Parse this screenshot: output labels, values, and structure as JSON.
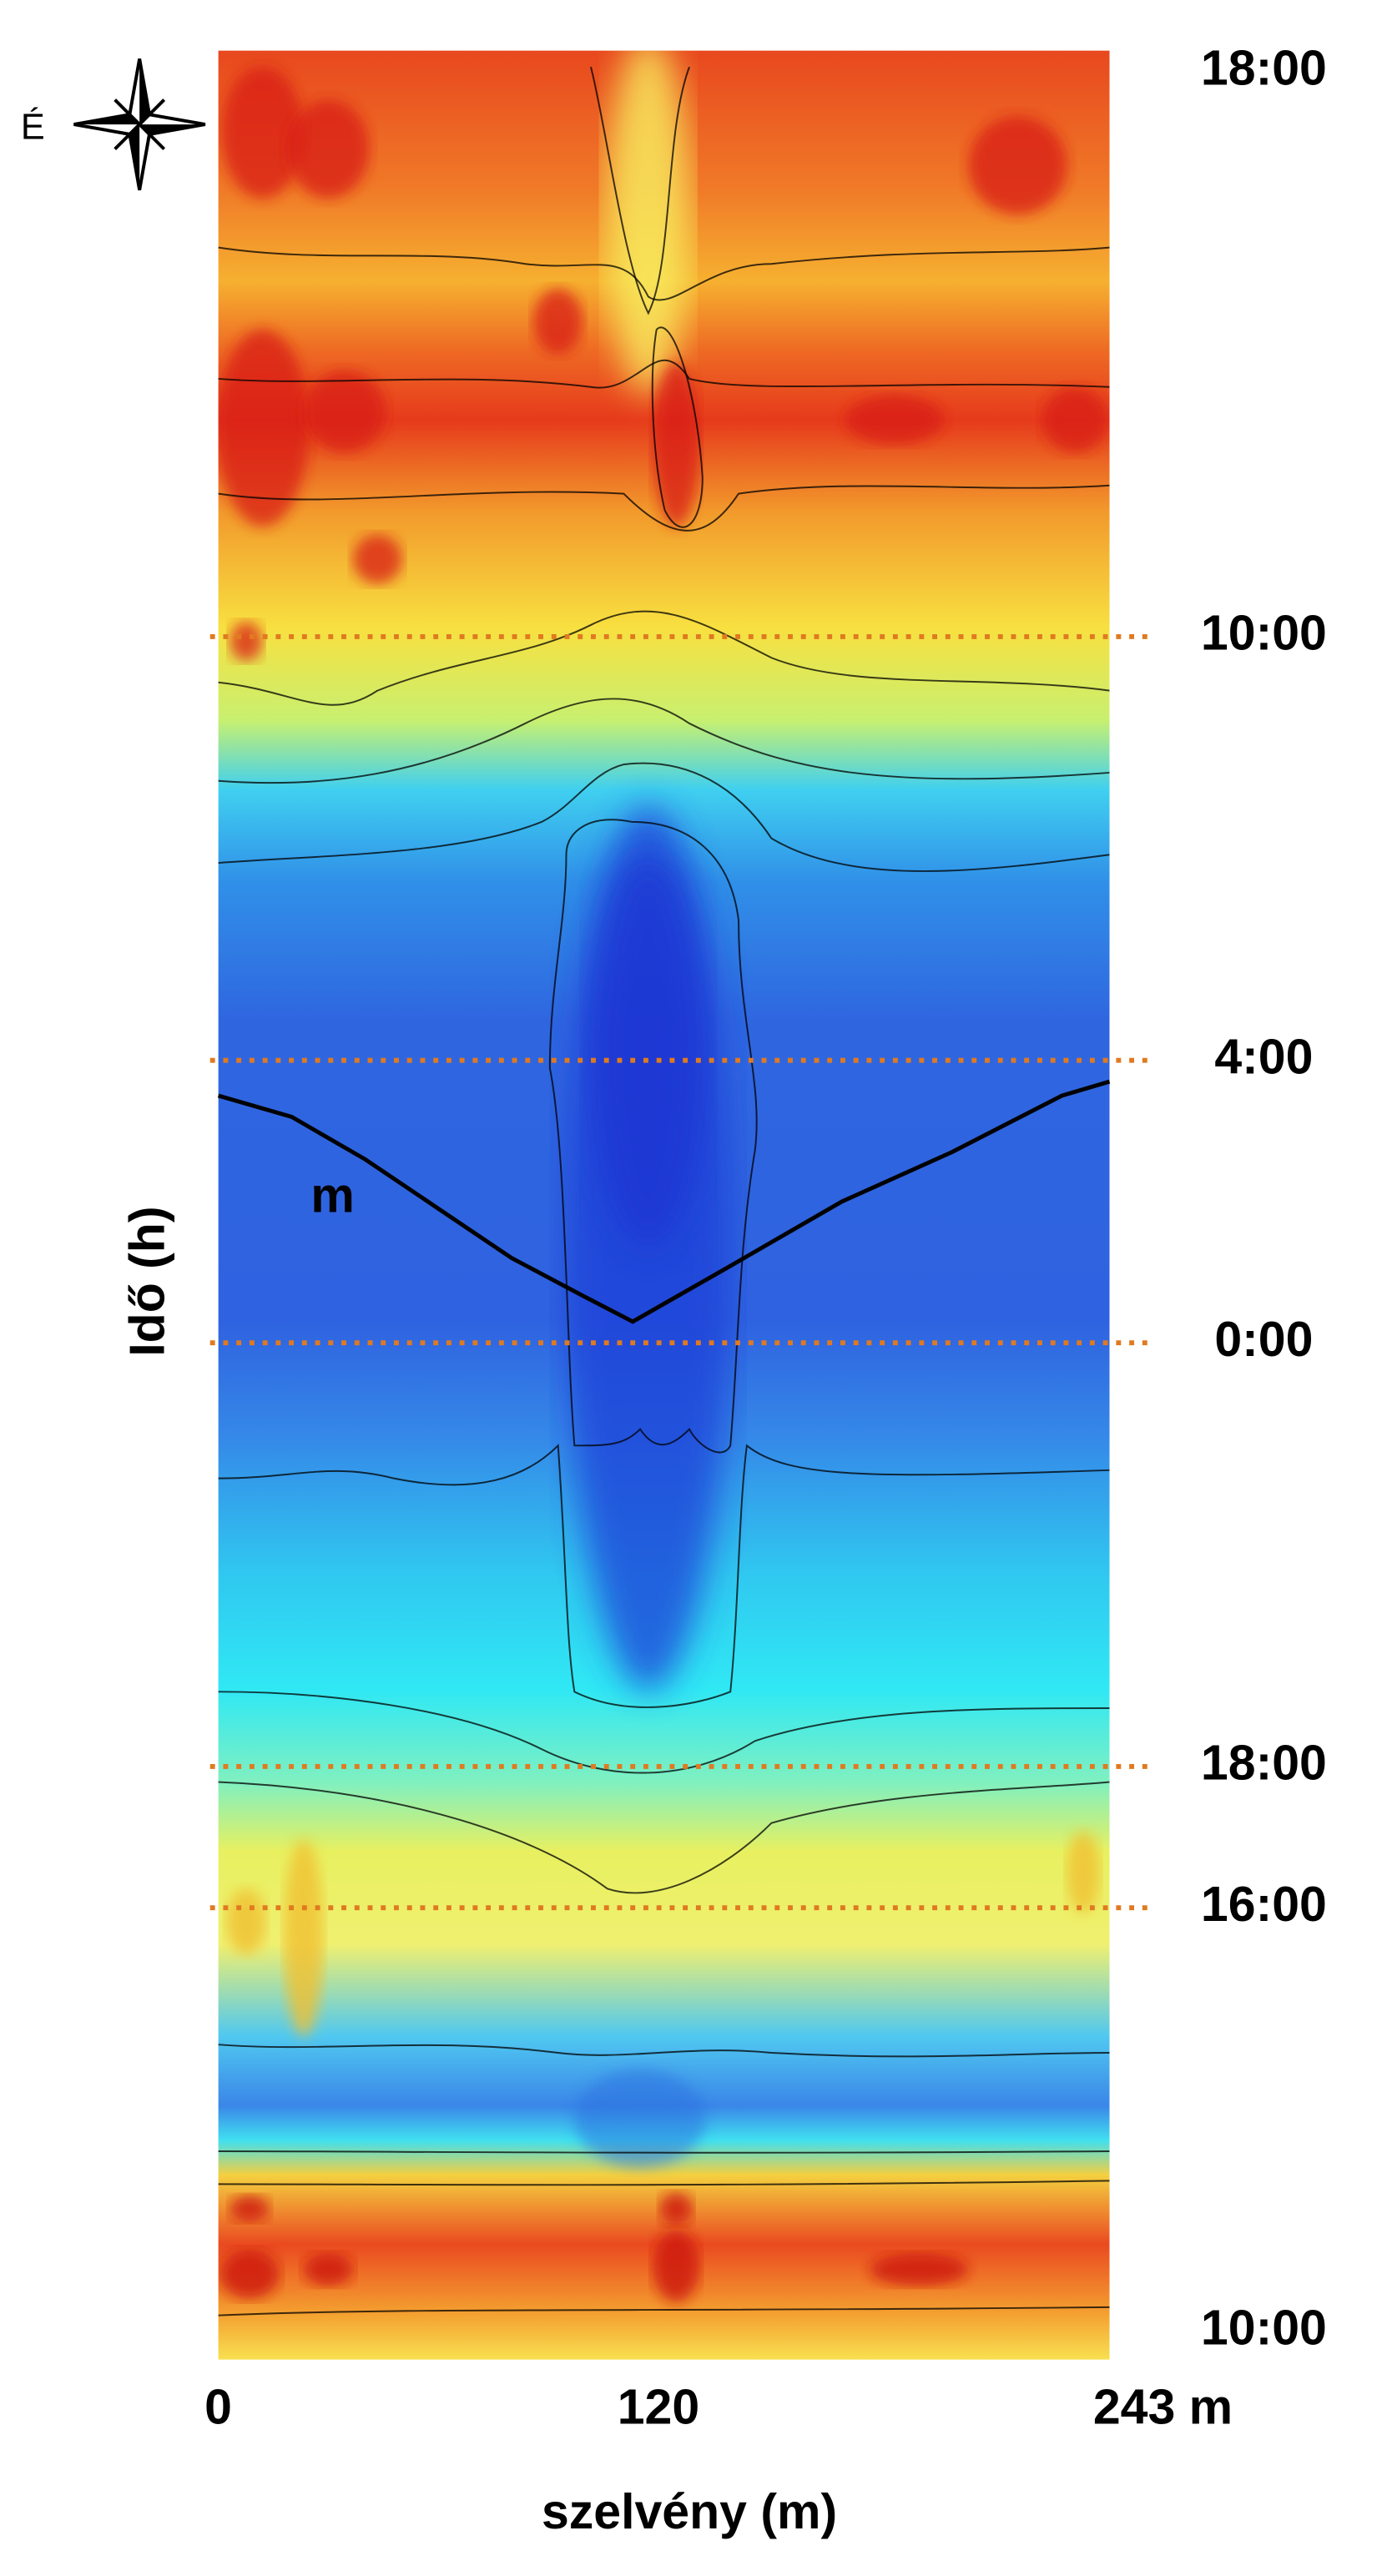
{
  "chart_data": {
    "type": "contour",
    "xlabel": "szelvény (m)",
    "ylabel": "Idő (h)",
    "xlim": [
      0,
      243
    ],
    "xticks": [
      0,
      120,
      {
        "value": 243,
        "label": "243 m"
      }
    ],
    "ylim": [
      -0.4,
      32.3
    ],
    "yticks": [
      {
        "value": 0,
        "label": "10:00"
      },
      {
        "value": 6,
        "label": "16:00"
      },
      {
        "value": 8,
        "label": "18:00"
      },
      {
        "value": 14,
        "label": "0:00"
      },
      {
        "value": 18,
        "label": "4:00"
      },
      {
        "value": 24,
        "label": "10:00"
      },
      {
        "value": 32,
        "label": "18:00"
      }
    ],
    "hlines": [
      6,
      8,
      14,
      18,
      24
    ],
    "hline_color": "#e07a20",
    "compass_label": "É",
    "series": [
      {
        "name": "m",
        "color": "#000000",
        "x": [
          0,
          20,
          40,
          60,
          80,
          100,
          113,
          140,
          170,
          200,
          230,
          243
        ],
        "values": [
          17.5,
          17.2,
          16.6,
          15.9,
          15.2,
          14.65,
          14.3,
          15.1,
          16.0,
          16.7,
          17.5,
          17.7
        ]
      }
    ]
  }
}
